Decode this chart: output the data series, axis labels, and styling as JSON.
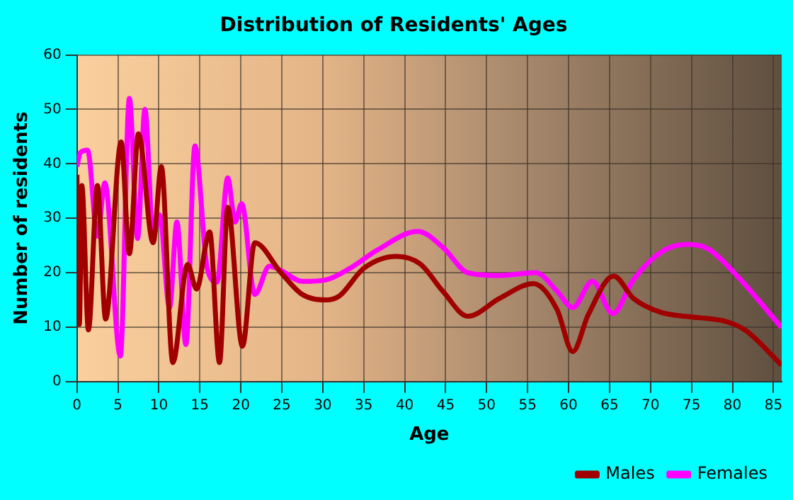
{
  "chart_data": {
    "type": "line",
    "title": "Distribution of Residents' Ages",
    "xlabel": "Age",
    "ylabel": "Number of residents",
    "xlim": [
      0,
      86
    ],
    "xticks": [
      0,
      5,
      10,
      15,
      20,
      25,
      30,
      35,
      40,
      45,
      50,
      55,
      60,
      65,
      70,
      75,
      80,
      85
    ],
    "ylim": [
      0,
      60
    ],
    "yticks": [
      0,
      10,
      20,
      30,
      40,
      50,
      60
    ],
    "grid": true,
    "legend": "bottom right",
    "marker": "none",
    "line_style": "solid",
    "series": [
      {
        "name": "Males",
        "color": "#a00000",
        "x": [
          0,
          0.3,
          0.6,
          1.4,
          2.5,
          3.5,
          5.4,
          6.4,
          7.5,
          9.3,
          10.3,
          11.7,
          13.5,
          14.6,
          16.2,
          17.4,
          18.4,
          20.2,
          21.7,
          24.9,
          27.5,
          30.4,
          32,
          35,
          39,
          41.9,
          44.7,
          47.7,
          51.6,
          55.7,
          58.6,
          60.5,
          62.4,
          65.5,
          67.9,
          71.3,
          74.8,
          79.3,
          81.7,
          86
        ],
        "values": [
          38,
          10.5,
          36,
          9.5,
          36,
          11.5,
          44,
          23.5,
          45.5,
          25.5,
          39.5,
          3.5,
          21.5,
          17,
          27.5,
          3.5,
          32,
          6.5,
          25.5,
          20,
          16,
          15,
          15.7,
          20.8,
          23,
          21.6,
          16.5,
          12,
          15.3,
          18,
          13.2,
          5.5,
          12.3,
          19.4,
          15.3,
          12.7,
          11.9,
          11,
          9.3,
          3
        ]
      },
      {
        "name": "Females",
        "color": "#ff00ff",
        "x": [
          0,
          0.4,
          1.3,
          2.5,
          3.4,
          5.3,
          6.4,
          7.4,
          8.3,
          9.3,
          10.1,
          11.3,
          12.2,
          13.3,
          14.4,
          15.9,
          17.1,
          18.4,
          19.3,
          20.1,
          21.7,
          23.5,
          24.9,
          27.5,
          30.4,
          33.3,
          36.7,
          41.6,
          44.7,
          47.7,
          51.6,
          56,
          58.6,
          60.5,
          62.9,
          65.4,
          67.9,
          71.3,
          74.4,
          77,
          80.5,
          86
        ],
        "values": [
          39.5,
          42,
          42.5,
          26.7,
          36.5,
          4.7,
          52,
          26.3,
          50,
          26.7,
          30.6,
          13.6,
          29.3,
          6.8,
          43.3,
          20.8,
          18.3,
          37.4,
          29.3,
          32.7,
          16,
          21.2,
          20.4,
          18.4,
          18.7,
          20.8,
          24.2,
          27.6,
          24.6,
          20,
          19.5,
          20,
          16.6,
          13.6,
          18.4,
          12.5,
          18.7,
          23.8,
          25.2,
          24.4,
          19.5,
          9.9
        ]
      }
    ]
  }
}
